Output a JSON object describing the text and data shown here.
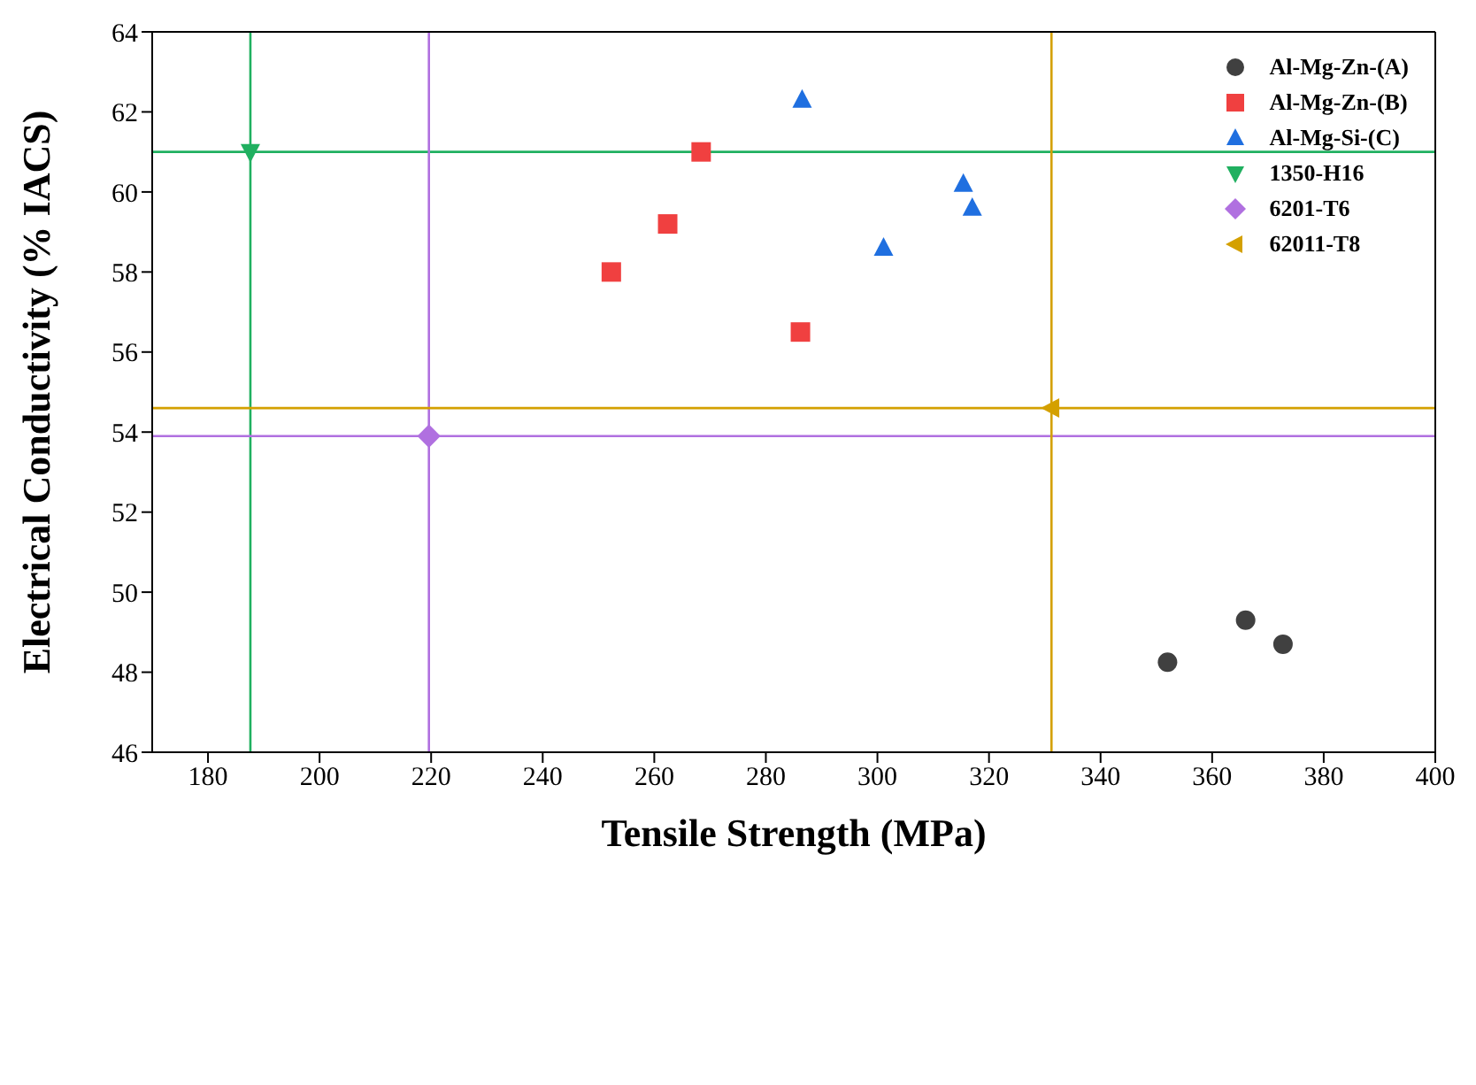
{
  "chart_data": {
    "type": "scatter",
    "xlabel": "Tensile Strength (MPa)",
    "ylabel": "Electrical Conductivity (% IACS)",
    "xlim": [
      170,
      400
    ],
    "xticks": [
      180,
      200,
      220,
      240,
      260,
      280,
      300,
      320,
      340,
      360,
      380,
      400
    ],
    "ylim": [
      46,
      64
    ],
    "yticks": [
      46,
      48,
      50,
      52,
      54,
      56,
      58,
      60,
      62,
      64
    ],
    "grid": false,
    "legend": "top right",
    "series": [
      {
        "name": "Al-Mg-Zn-(A)",
        "color": "#404040",
        "marker": "circle",
        "x": [
          352,
          366,
          372.7
        ],
        "values": [
          48.25,
          49.3,
          48.7
        ]
      },
      {
        "name": "Al-Mg-Zn-(B)",
        "color": "#f04040",
        "marker": "square",
        "x": [
          252.3,
          262.4,
          268.4,
          286.2
        ],
        "values": [
          58.0,
          59.2,
          61.0,
          56.5
        ]
      },
      {
        "name": "Al-Mg-Si-(C)",
        "color": "#1f6fe0",
        "marker": "triangle",
        "x": [
          286.5,
          301.1,
          315.4,
          317
        ],
        "values": [
          62.3,
          58.6,
          60.2,
          59.6
        ]
      },
      {
        "name": "1350-H16",
        "color": "#20b060",
        "marker": "triangle-down",
        "x": [
          187.6
        ],
        "values": [
          61.0
        ]
      },
      {
        "name": "6201-T6",
        "color": "#b070e0",
        "marker": "diamond",
        "x": [
          219.6
        ],
        "values": [
          53.9
        ]
      },
      {
        "name": "62011-T8",
        "color": "#d4a000",
        "marker": "triangle-left",
        "x": [
          331.2
        ],
        "values": [
          54.6
        ]
      }
    ],
    "ref_lines": [
      {
        "axis": "x",
        "value": 187.6,
        "color": "#20b060"
      },
      {
        "axis": "y",
        "value": 61.0,
        "color": "#20b060"
      },
      {
        "axis": "x",
        "value": 219.6,
        "color": "#b070e0"
      },
      {
        "axis": "y",
        "value": 53.9,
        "color": "#b070e0"
      },
      {
        "axis": "x",
        "value": 331.2,
        "color": "#d4a000"
      },
      {
        "axis": "y",
        "value": 54.6,
        "color": "#d4a000"
      }
    ]
  }
}
